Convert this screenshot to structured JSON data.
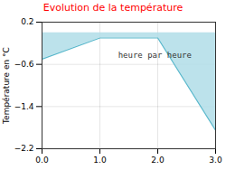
{
  "chart_data": {
    "type": "line",
    "title": "Evolution de la température",
    "ylabel": "Température en °C",
    "x": [
      0,
      1,
      2,
      3
    ],
    "values": [
      -0.5,
      -0.1,
      -0.1,
      -1.85
    ],
    "color": "#5ab8cc",
    "xlim": [
      0,
      3
    ],
    "xticks": [
      0,
      1,
      2,
      3
    ],
    "ylim": [
      -2.2,
      0.2
    ],
    "yticks": [
      0.2,
      -0.6,
      -1.4,
      -2.2
    ],
    "grid": true,
    "annotations": [
      {
        "text": "heure par heure",
        "x": 1.95,
        "y": -0.42
      }
    ]
  }
}
